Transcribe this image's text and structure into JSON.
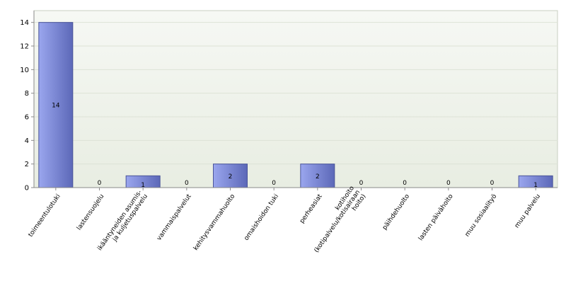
{
  "chart_data": {
    "type": "bar",
    "categories": [
      "toimeentulotuki",
      "lastensuojelu",
      "ikääntyneiden asumis- ja kuljetuspalvelu",
      "vammaispalvelut",
      "kehitysvammahuolto",
      "omaishoidon tuki",
      "perheasiat",
      "kotihoito (kotipalvelu/kotisairaanhoito)",
      "päihdehuolto",
      "lasten päivähoito",
      "muu sosiaalityö",
      "muu palvelu"
    ],
    "category_lines": [
      [
        "toimeentulotuki"
      ],
      [
        "lastensuojelu"
      ],
      [
        "ikääntyneiden asumis-",
        "ja kuljetuspalvelu"
      ],
      [
        "vammaispalvelut"
      ],
      [
        "kehitysvammahuolto"
      ],
      [
        "omaishoidon tuki"
      ],
      [
        "perheasiat"
      ],
      [
        "kotihoito",
        "(kotipalvelu/kotisairaan",
        "hoito)"
      ],
      [
        "päihdehuolto"
      ],
      [
        "lasten päivähoito"
      ],
      [
        "muu sosiaalityö"
      ],
      [
        "muu palvelu"
      ]
    ],
    "values": [
      14,
      0,
      1,
      0,
      2,
      0,
      2,
      0,
      0,
      0,
      0,
      1
    ],
    "data_labels": [
      "14",
      "0",
      "1",
      "0",
      "2",
      "0",
      "2",
      "0",
      "0",
      "0",
      "0",
      "1"
    ],
    "y_ticks": [
      0,
      2,
      4,
      6,
      8,
      10,
      12,
      14
    ],
    "ylim": [
      0,
      15
    ],
    "title": "",
    "xlabel": "",
    "ylabel": "",
    "grid": true,
    "legend": "none",
    "colors": {
      "plot_bg_top": "#f6f8f4",
      "plot_bg_bottom": "#e8ede2",
      "grid": "#dde3d6",
      "axis": "#8a8a8a",
      "bar_light": "#9aa6ee",
      "bar_dark": "#5c68b8",
      "bar_edge": "#4a5499"
    }
  }
}
